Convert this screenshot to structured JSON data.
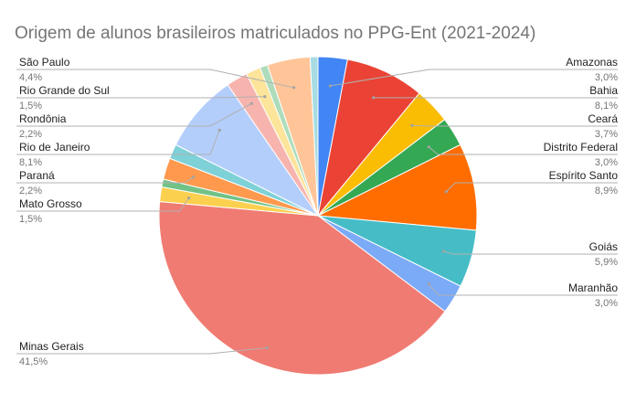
{
  "chart_data": {
    "type": "pie",
    "title": "Origem de alunos  brasileiros matriculados no PPG-Ent (2021-2024)",
    "slices": [
      {
        "label": "Amazonas",
        "value": 3.0,
        "display": "3,0%",
        "color": "#4285f4"
      },
      {
        "label": "Bahia",
        "value": 8.1,
        "display": "8,1%",
        "color": "#ea4335"
      },
      {
        "label": "Ceará",
        "value": 3.7,
        "display": "3,7%",
        "color": "#fbbc04"
      },
      {
        "label": "Distrito Federal",
        "value": 3.0,
        "display": "3,0%",
        "color": "#34a853"
      },
      {
        "label": "Espírito Santo",
        "value": 8.9,
        "display": "8,9%",
        "color": "#ff6d01"
      },
      {
        "label": "Goiás",
        "value": 5.9,
        "display": "5,9%",
        "color": "#46bdc6"
      },
      {
        "label": "Maranhão",
        "value": 3.0,
        "display": "3,0%",
        "color": "#7baaf7"
      },
      {
        "label": "Minas Gerais",
        "value": 41.5,
        "display": "41,5%",
        "color": "#f07b72"
      },
      {
        "label": "Mato Grosso",
        "value": 1.5,
        "display": "1,5%",
        "color": "#fcd04f"
      },
      {
        "label": "",
        "value": 0.8,
        "display": "",
        "color": "#71c287"
      },
      {
        "label": "Paraná",
        "value": 2.2,
        "display": "2,2%",
        "color": "#ff994d"
      },
      {
        "label": "",
        "value": 1.5,
        "display": "",
        "color": "#7ed1d7"
      },
      {
        "label": "Rio de Janeiro",
        "value": 8.1,
        "display": "8,1%",
        "color": "#b3cefb"
      },
      {
        "label": "Rondônia",
        "value": 2.2,
        "display": "2,2%",
        "color": "#f7b4ae"
      },
      {
        "label": "Rio Grande do Sul",
        "value": 1.5,
        "display": "1,5%",
        "color": "#fde49b"
      },
      {
        "label": "",
        "value": 0.8,
        "display": "",
        "color": "#aedcba"
      },
      {
        "label": "São Paulo",
        "value": 4.4,
        "display": "4,4%",
        "color": "#ffc599"
      },
      {
        "label": "",
        "value": 0.8,
        "display": "",
        "color": "#a6dce2"
      }
    ],
    "legend": "none",
    "labels_position": "outside with leader lines"
  }
}
